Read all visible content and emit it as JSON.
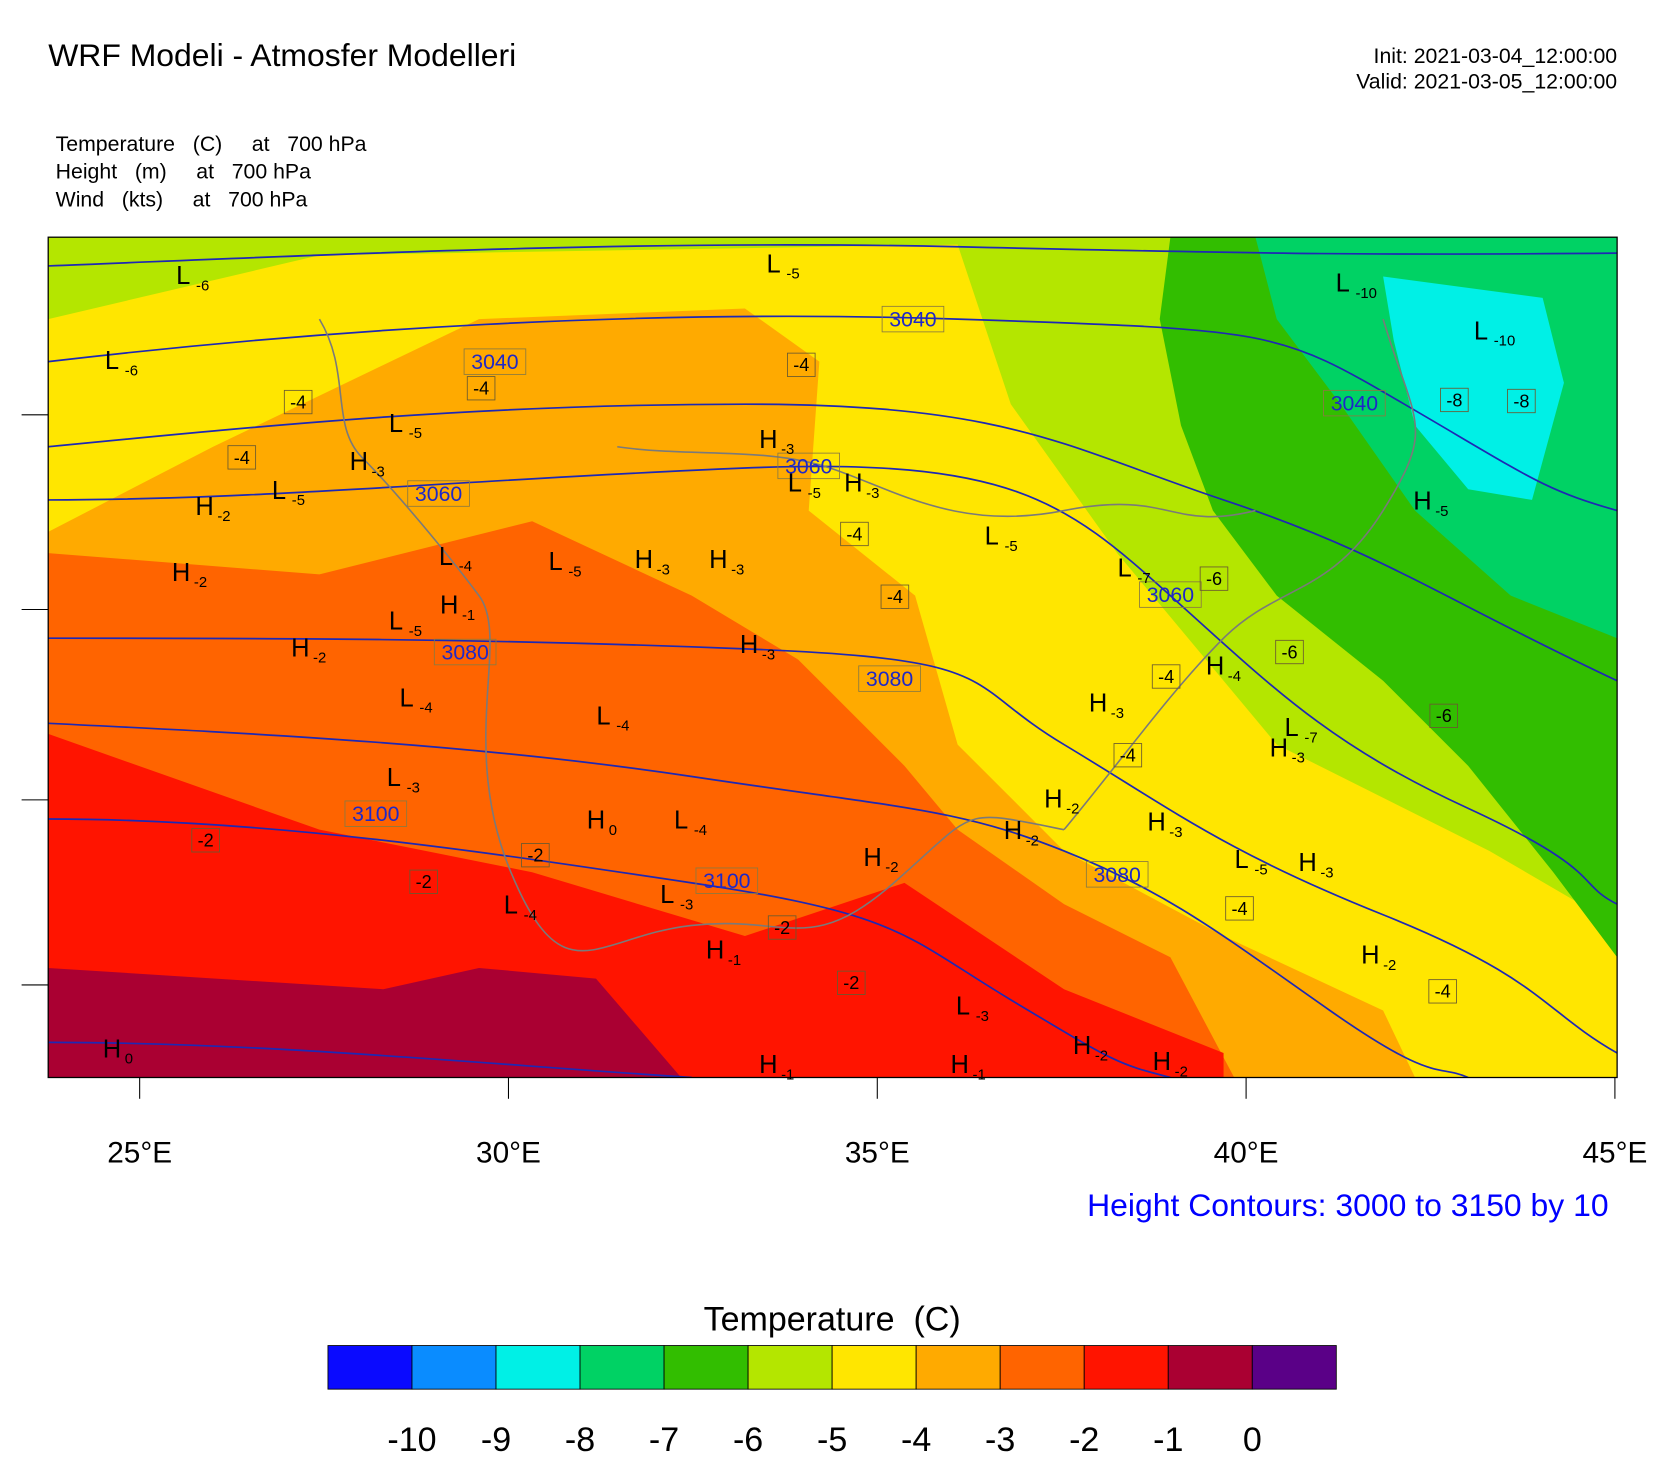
{
  "header": {
    "title": "WRF Modeli - Atmosfer Modelleri",
    "init": "Init: 2021-03-04_12:00:00",
    "valid": "Valid: 2021-03-05_12:00:00"
  },
  "fields": [
    "Temperature   (C)     at   700 hPa",
    "Height   (m)     at   700 hPa",
    "Wind   (kts)     at   700 hPa"
  ],
  "map": {
    "xlim": [
      23.76,
      45.03
    ],
    "xticks": [
      {
        "value": 25,
        "label": "25°E"
      },
      {
        "value": 30,
        "label": "30°E"
      },
      {
        "value": 35,
        "label": "35°E"
      },
      {
        "value": 40,
        "label": "40°E"
      },
      {
        "value": 45,
        "label": "45°E"
      }
    ],
    "height_labels": [
      3040,
      3040,
      3040,
      3060,
      3060,
      3060,
      3080,
      3080,
      3080,
      3100,
      3100
    ],
    "temp_labels": [
      -4,
      -4,
      -4,
      -4,
      -4,
      -4,
      -8,
      -8,
      -6,
      -6,
      -4,
      -4,
      -6,
      -2,
      -2,
      -2,
      -2,
      -2,
      -4,
      -4
    ],
    "centers": [
      {
        "label": "L",
        "value": -6
      },
      {
        "label": "L",
        "value": -5
      },
      {
        "label": "L",
        "value": -6
      },
      {
        "label": "L",
        "value": -5
      },
      {
        "label": "H",
        "value": -3
      },
      {
        "label": "L",
        "value": -5
      },
      {
        "label": "H",
        "value": -2
      },
      {
        "label": "H",
        "value": -3
      },
      {
        "label": "L",
        "value": -5
      },
      {
        "label": "H",
        "value": -3
      },
      {
        "label": "L",
        "value": -10
      },
      {
        "label": "L",
        "value": -10
      },
      {
        "label": "H",
        "value": -5
      },
      {
        "label": "L",
        "value": -5
      },
      {
        "label": "L",
        "value": -7
      },
      {
        "label": "H",
        "value": -2
      },
      {
        "label": "L",
        "value": -4
      },
      {
        "label": "L",
        "value": -5
      },
      {
        "label": "H",
        "value": -3
      },
      {
        "label": "H",
        "value": -3
      },
      {
        "label": "H",
        "value": -1
      },
      {
        "label": "L",
        "value": -5
      },
      {
        "label": "H",
        "value": -2
      },
      {
        "label": "H",
        "value": -3
      },
      {
        "label": "H",
        "value": -4
      },
      {
        "label": "L",
        "value": -4
      },
      {
        "label": "L",
        "value": -4
      },
      {
        "label": "H",
        "value": -3
      },
      {
        "label": "L",
        "value": -7
      },
      {
        "label": "H",
        "value": -3
      },
      {
        "label": "L",
        "value": -3
      },
      {
        "label": "H",
        "value": -2
      },
      {
        "label": "H",
        "value": 0
      },
      {
        "label": "L",
        "value": -4
      },
      {
        "label": "H",
        "value": -2
      },
      {
        "label": "H",
        "value": -2
      },
      {
        "label": "H",
        "value": -3
      },
      {
        "label": "L",
        "value": -5
      },
      {
        "label": "H",
        "value": -3
      },
      {
        "label": "L",
        "value": -3
      },
      {
        "label": "L",
        "value": -4
      },
      {
        "label": "H",
        "value": -1
      },
      {
        "label": "H",
        "value": -2
      },
      {
        "label": "L",
        "value": -3
      },
      {
        "label": "H",
        "value": -2
      },
      {
        "label": "H",
        "value": -2
      },
      {
        "label": "H",
        "value": 0
      },
      {
        "label": "H",
        "value": -1
      },
      {
        "label": "H",
        "value": -1
      }
    ]
  },
  "footer": "Height Contours: 3000 to 3150 by 10",
  "colorbar": {
    "title": "Temperature  (C)",
    "colors": [
      "#0a0aff",
      "#0a8cff",
      "#00f0e6",
      "#00d264",
      "#32be00",
      "#b4e600",
      "#ffe600",
      "#ffaa00",
      "#ff6400",
      "#ff1400",
      "#aa0032",
      "#5a0087"
    ],
    "labels": [
      -10,
      -9,
      -8,
      -7,
      -6,
      -5,
      -4,
      -3,
      -2,
      -1,
      0
    ]
  }
}
